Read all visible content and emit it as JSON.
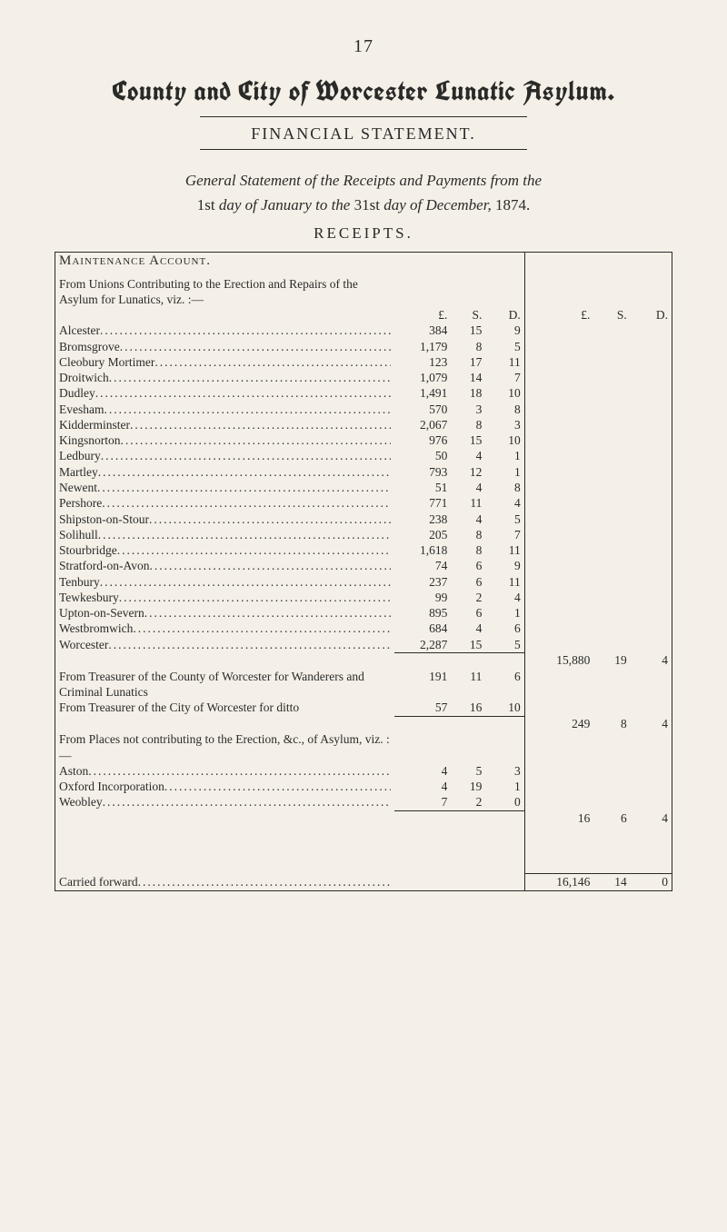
{
  "page_number": "17",
  "blackletter_title": "County and City of Worcester Lunatic Asylum.",
  "financial_statement_heading": "FINANCIAL STATEMENT.",
  "general_statement": {
    "line1_italic_a": "General Statement of the Receipts and Payments from the",
    "line2_prefix_plain": "1st ",
    "line2_mid_italic": "day of January to the ",
    "line2_mid_plain": "31st ",
    "line2_end_italic": "day of December, ",
    "line2_year_plain": "1874."
  },
  "receipts_heading": "RECEIPTS.",
  "col_headers": {
    "L": "£.",
    "S": "S.",
    "D": "D."
  },
  "maintenance": {
    "heading": "Maintenance Account.",
    "intro": "From Unions Contributing to the Erec­tion and Repairs of the Asylum for Lunatics, viz. :—",
    "rows": [
      {
        "label": "Alcester",
        "L": "384",
        "S": "15",
        "D": "9"
      },
      {
        "label": "Bromsgrove",
        "L": "1,179",
        "S": "8",
        "D": "5"
      },
      {
        "label": "Cleobury Mortimer",
        "L": "123",
        "S": "17",
        "D": "11"
      },
      {
        "label": "Droitwich",
        "L": "1,079",
        "S": "14",
        "D": "7"
      },
      {
        "label": "Dudley",
        "L": "1,491",
        "S": "18",
        "D": "10"
      },
      {
        "label": "Evesham",
        "L": "570",
        "S": "3",
        "D": "8"
      },
      {
        "label": "Kidderminster",
        "L": "2,067",
        "S": "8",
        "D": "3"
      },
      {
        "label": "Kingsnorton",
        "L": "976",
        "S": "15",
        "D": "10"
      },
      {
        "label": "Ledbury",
        "L": "50",
        "S": "4",
        "D": "1"
      },
      {
        "label": "Martley",
        "L": "793",
        "S": "12",
        "D": "1"
      },
      {
        "label": "Newent",
        "L": "51",
        "S": "4",
        "D": "8"
      },
      {
        "label": "Pershore",
        "L": "771",
        "S": "11",
        "D": "4"
      },
      {
        "label": "Shipston-on-Stour",
        "L": "238",
        "S": "4",
        "D": "5"
      },
      {
        "label": "Solihull",
        "L": "205",
        "S": "8",
        "D": "7"
      },
      {
        "label": "Stourbridge",
        "L": "1,618",
        "S": "8",
        "D": "11"
      },
      {
        "label": "Stratford-on-Avon",
        "L": "74",
        "S": "6",
        "D": "9"
      },
      {
        "label": "Tenbury",
        "L": "237",
        "S": "6",
        "D": "11"
      },
      {
        "label": "Tewkesbury",
        "L": "99",
        "S": "2",
        "D": "4"
      },
      {
        "label": "Upton-on-Severn",
        "L": "895",
        "S": "6",
        "D": "1"
      },
      {
        "label": "Westbromwich",
        "L": "684",
        "S": "4",
        "D": "6"
      },
      {
        "label": "Worcester",
        "L": "2,287",
        "S": "15",
        "D": "5"
      }
    ],
    "subtotal": {
      "L": "15,880",
      "S": "19",
      "D": "4"
    }
  },
  "treasurer": {
    "rows": [
      {
        "label": "From Treasurer of the County of Worces­ter for Wanderers and Criminal Lunatics",
        "L": "191",
        "S": "11",
        "D": "6"
      },
      {
        "label": "From Treasurer of the City of Worcester for ditto",
        "L": "57",
        "S": "16",
        "D": "10"
      }
    ],
    "subtotal": {
      "L": "249",
      "S": "8",
      "D": "4"
    }
  },
  "places": {
    "intro": "From Places not contributing to the Erection, &c., of Asylum, viz. :—",
    "rows": [
      {
        "label": "Aston",
        "L": "4",
        "S": "5",
        "D": "3"
      },
      {
        "label": "Oxford Incorporation",
        "L": "4",
        "S": "19",
        "D": "1"
      },
      {
        "label": "Weobley",
        "L": "7",
        "S": "2",
        "D": "0"
      }
    ],
    "subtotal": {
      "L": "16",
      "S": "6",
      "D": "4"
    }
  },
  "carried_forward": {
    "label": "Carried forward",
    "L": "16,146",
    "S": "14",
    "D": "0"
  },
  "colors": {
    "page_bg": "#f4f0e8",
    "ink": "#2a2a28",
    "rule": "#2a2a28"
  },
  "typography": {
    "body_pt": 13.5,
    "title_pt": 30,
    "section_pt": 18,
    "statement_pt": 17
  }
}
